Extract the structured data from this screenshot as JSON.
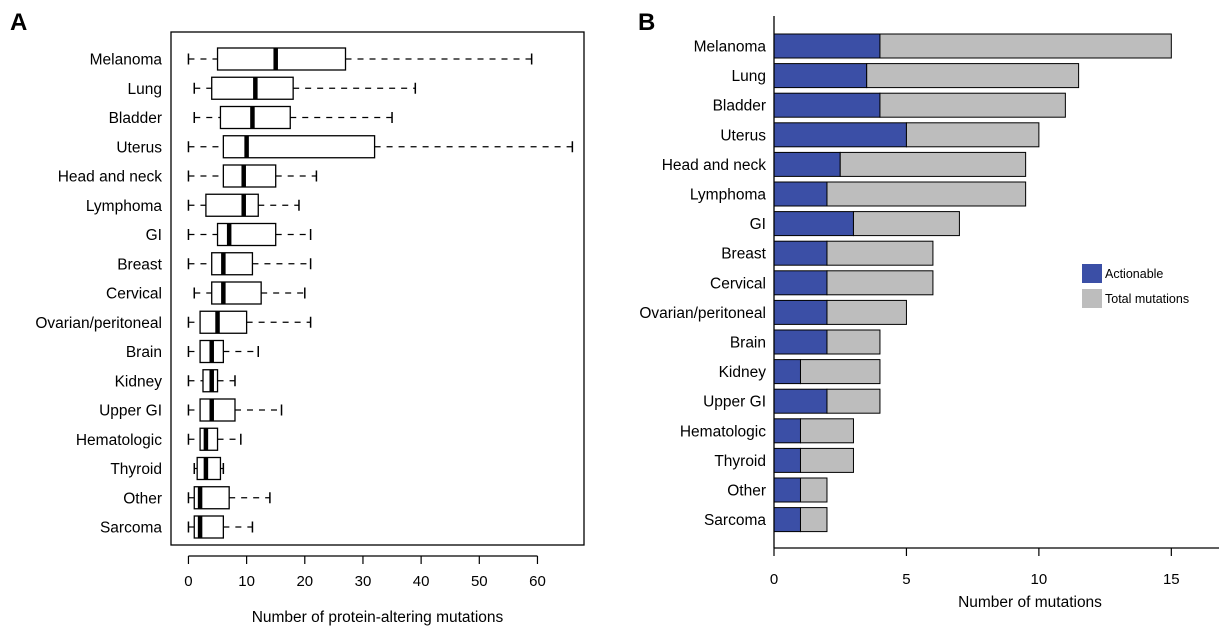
{
  "chart_data": [
    {
      "type": "box",
      "panel_label": "A",
      "categories": [
        "Melanoma",
        "Lung",
        "Bladder",
        "Uterus",
        "Head and neck",
        "Lymphoma",
        "GI",
        "Breast",
        "Cervical",
        "Ovarian/peritoneal",
        "Brain",
        "Kidney",
        "Upper GI",
        "Hematologic",
        "Thyroid",
        "Other",
        "Sarcoma"
      ],
      "boxes": [
        {
          "whisker_low": 0,
          "q1": 5,
          "median": 15,
          "q3": 27,
          "whisker_high": 59
        },
        {
          "whisker_low": 1,
          "q1": 4,
          "median": 11.5,
          "q3": 18,
          "whisker_high": 39
        },
        {
          "whisker_low": 1,
          "q1": 5.5,
          "median": 11,
          "q3": 17.5,
          "whisker_high": 35
        },
        {
          "whisker_low": 0,
          "q1": 6,
          "median": 10,
          "q3": 32,
          "whisker_high": 66
        },
        {
          "whisker_low": 0,
          "q1": 6,
          "median": 9.5,
          "q3": 15,
          "whisker_high": 22
        },
        {
          "whisker_low": 0,
          "q1": 3,
          "median": 9.5,
          "q3": 12,
          "whisker_high": 19
        },
        {
          "whisker_low": 0,
          "q1": 5,
          "median": 7,
          "q3": 15,
          "whisker_high": 21
        },
        {
          "whisker_low": 0,
          "q1": 4,
          "median": 6,
          "q3": 11,
          "whisker_high": 21
        },
        {
          "whisker_low": 1,
          "q1": 4,
          "median": 6,
          "q3": 12.5,
          "whisker_high": 20
        },
        {
          "whisker_low": 0,
          "q1": 2,
          "median": 5,
          "q3": 10,
          "whisker_high": 21
        },
        {
          "whisker_low": 0,
          "q1": 2,
          "median": 4,
          "q3": 6,
          "whisker_high": 12
        },
        {
          "whisker_low": 0,
          "q1": 2.5,
          "median": 4,
          "q3": 5,
          "whisker_high": 8
        },
        {
          "whisker_low": 0,
          "q1": 2,
          "median": 4,
          "q3": 8,
          "whisker_high": 16
        },
        {
          "whisker_low": 0,
          "q1": 2,
          "median": 3,
          "q3": 5,
          "whisker_high": 9
        },
        {
          "whisker_low": 1,
          "q1": 1.5,
          "median": 3,
          "q3": 5.5,
          "whisker_high": 6
        },
        {
          "whisker_low": 0,
          "q1": 1,
          "median": 2,
          "q3": 7,
          "whisker_high": 14
        },
        {
          "whisker_low": 0,
          "q1": 1,
          "median": 2,
          "q3": 6,
          "whisker_high": 11
        }
      ],
      "xlabel": "Number of protein-altering mutations",
      "xticks": [
        0,
        10,
        20,
        30,
        40,
        50,
        60
      ],
      "xlim": [
        -3,
        68
      ],
      "grid": false,
      "colors": {
        "box_fill": "#ffffff",
        "stroke": "#000000"
      }
    },
    {
      "type": "bar",
      "orientation": "horizontal",
      "stacked": true,
      "panel_label": "B",
      "categories": [
        "Melanoma",
        "Lung",
        "Bladder",
        "Uterus",
        "Head and neck",
        "Lymphoma",
        "GI",
        "Breast",
        "Cervical",
        "Ovarian/peritoneal",
        "Brain",
        "Kidney",
        "Upper GI",
        "Hematologic",
        "Thyroid",
        "Other",
        "Sarcoma"
      ],
      "series": [
        {
          "name": "Actionable",
          "color": "#3b4fa6",
          "values": [
            4,
            3.5,
            4,
            5,
            2.5,
            2,
            3,
            2,
            2,
            2,
            2,
            1,
            2,
            1,
            1,
            1,
            1
          ]
        },
        {
          "name": "Total mutations",
          "color": "#bdbdbd",
          "values": [
            15,
            11.5,
            11,
            10,
            9.5,
            9.5,
            7,
            6,
            6,
            5,
            4,
            4,
            4,
            3,
            3,
            2,
            2
          ]
        }
      ],
      "xlabel": "Number of mutations",
      "xticks": [
        0,
        5,
        10,
        15
      ],
      "xlim": [
        0,
        16.8
      ],
      "grid": false,
      "legend_position": "right"
    }
  ]
}
